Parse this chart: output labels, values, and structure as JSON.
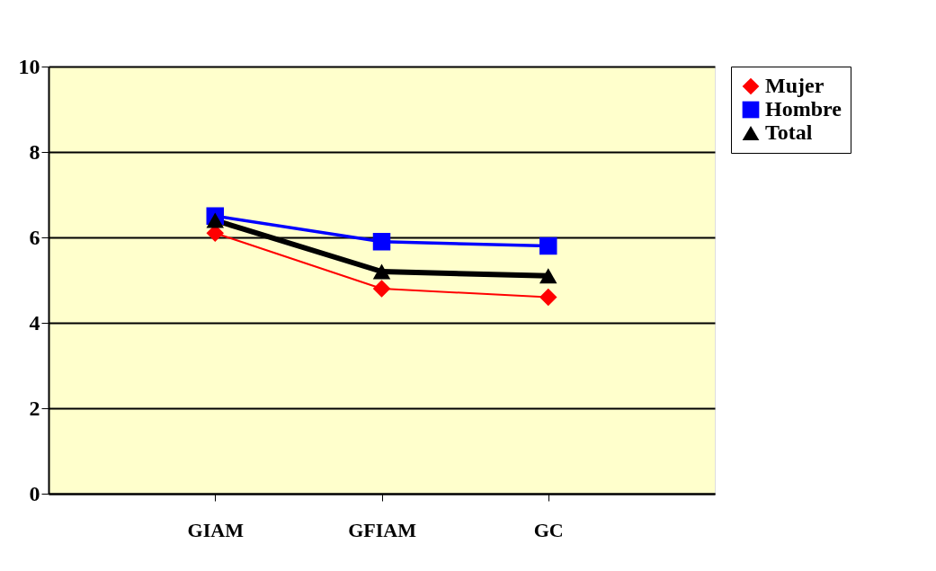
{
  "chart_data": {
    "type": "line",
    "categories": [
      "GIAM",
      "GFIAM",
      "GC"
    ],
    "series": [
      {
        "name": "Mujer",
        "color": "#ff0000",
        "values": [
          6.1,
          4.8,
          4.6
        ],
        "marker": "diamond"
      },
      {
        "name": "Hombre",
        "color": "#0000ff",
        "values": [
          6.5,
          5.9,
          5.8
        ],
        "marker": "square"
      },
      {
        "name": "Total",
        "color": "#000000",
        "values": [
          6.4,
          5.2,
          5.1
        ],
        "marker": "triangle"
      }
    ],
    "ylim": [
      0,
      10
    ],
    "yticks": [
      0,
      2,
      4,
      6,
      8,
      10
    ],
    "grid": "y",
    "legend": "right",
    "line_style": "solid"
  }
}
